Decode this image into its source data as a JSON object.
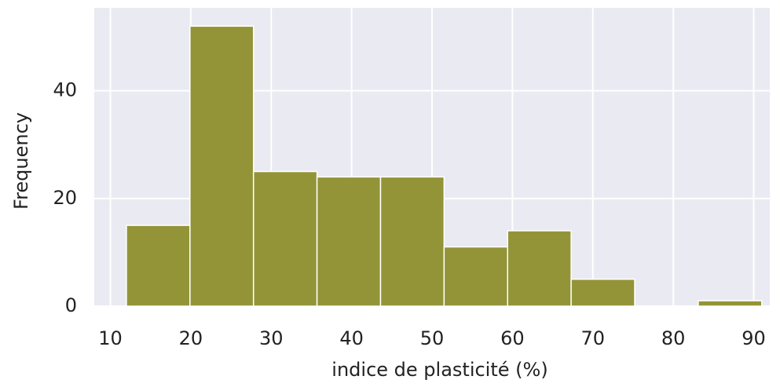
{
  "chart_data": {
    "type": "histogram",
    "xlabel": "indice de plasticité (%)",
    "ylabel": "Frequency",
    "bins": [
      12,
      19.9,
      27.8,
      35.7,
      43.6,
      51.5,
      59.4,
      67.3,
      75.2,
      83.1,
      91
    ],
    "values": [
      15,
      52,
      25,
      24,
      24,
      11,
      14,
      5,
      0,
      1
    ],
    "color": "#939437",
    "xlim": [
      8,
      92
    ],
    "ylim": [
      0,
      55.4
    ],
    "xticks": [
      10,
      20,
      30,
      40,
      50,
      60,
      70,
      80,
      90
    ],
    "yticks": [
      0,
      20,
      40
    ],
    "grid": true
  }
}
